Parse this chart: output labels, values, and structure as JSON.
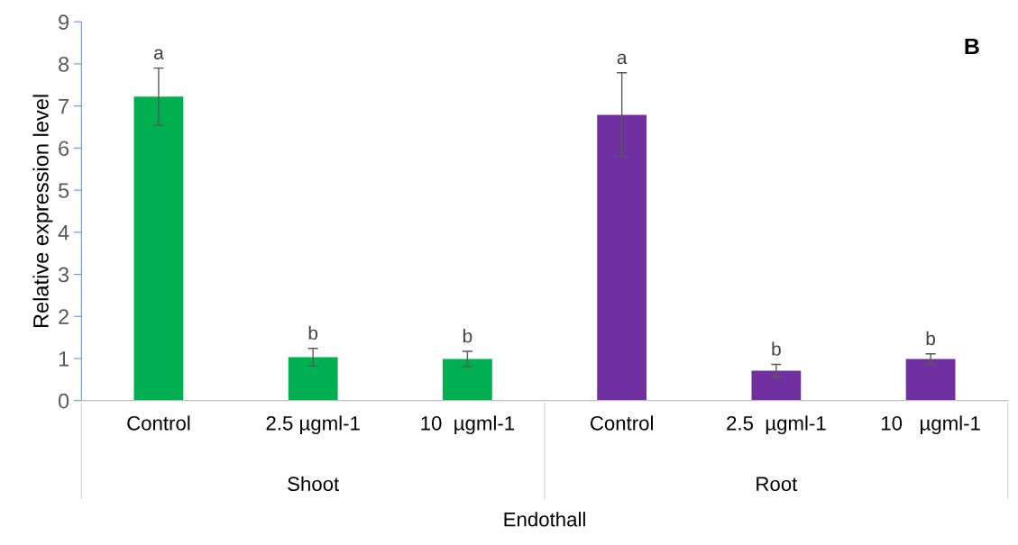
{
  "chart_data": {
    "type": "bar",
    "title": "B",
    "xlabel": "Endothall",
    "ylabel": "Relative expression level",
    "categories": [
      "Control",
      "2.5 µgml-1",
      "10  µgml-1",
      "Control",
      "2.5  µgml-1",
      "10   µgml-1"
    ],
    "values": [
      7.22,
      1.03,
      0.99,
      6.79,
      0.71,
      0.99
    ],
    "errors": [
      0.68,
      0.21,
      0.18,
      1.0,
      0.15,
      0.12
    ],
    "value_labels": [
      "a",
      "b",
      "b",
      "a",
      "b",
      "b"
    ],
    "colors": [
      "#00b050",
      "#00b050",
      "#00b050",
      "#7030a0",
      "#7030a0",
      "#7030a0"
    ],
    "annotations": [
      "Shoot",
      "Root"
    ],
    "ylim": [
      0,
      9
    ],
    "yticks": [
      0,
      1,
      2,
      3,
      4,
      5,
      6,
      7,
      8,
      9
    ],
    "grid": false
  }
}
